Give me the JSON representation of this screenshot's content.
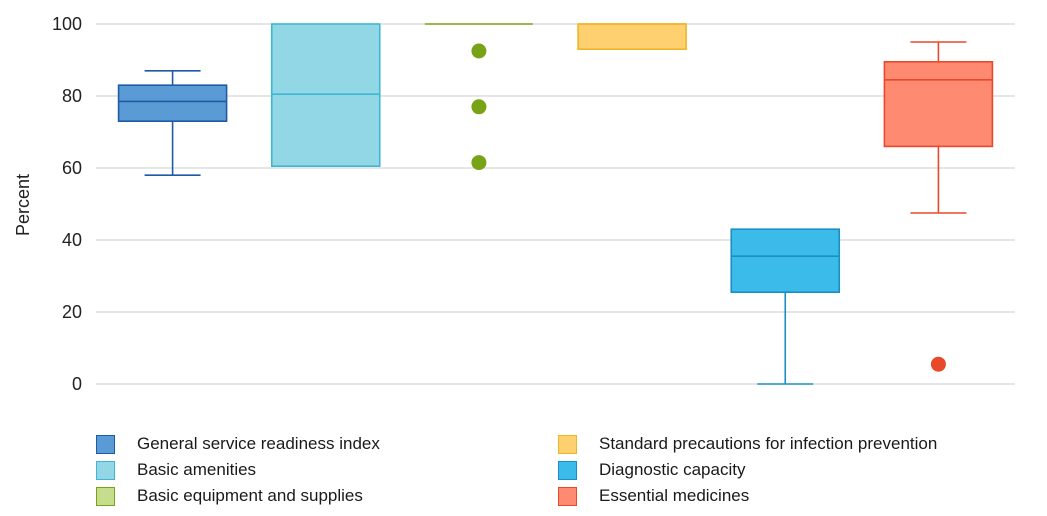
{
  "chart_data": {
    "type": "boxplot",
    "ylabel": "Percent",
    "ylim": [
      0,
      100
    ],
    "yticks": [
      0,
      20,
      40,
      60,
      80,
      100
    ],
    "grid": true,
    "legend_position": "bottom",
    "series": [
      {
        "name": "General service readiness index",
        "fill": "#5b9bd5",
        "stroke": "#1f5aa6",
        "min": 58,
        "q1": 73,
        "median": 78.5,
        "q3": 83,
        "max": 87,
        "outliers": []
      },
      {
        "name": "Basic amenities",
        "fill": "#91d7e6",
        "stroke": "#3fb7d3",
        "min": 60.5,
        "q1": 60.5,
        "median": 80.5,
        "q3": 100,
        "max": 100,
        "outliers": []
      },
      {
        "name": "Basic equipment and supplies",
        "fill": "#c5dd8d",
        "stroke": "#79a316",
        "min": 100,
        "q1": 100,
        "median": 100,
        "q3": 100,
        "max": 100,
        "outliers": [
          92.5,
          77,
          61.5
        ]
      },
      {
        "name": "Standard precautions for infection prevention",
        "fill": "#ffd070",
        "stroke": "#f0b429",
        "min": 93,
        "q1": 93,
        "median": 100,
        "q3": 100,
        "max": 100,
        "outliers": []
      },
      {
        "name": "Diagnostic capacity",
        "fill": "#3bbbea",
        "stroke": "#1a8fc4",
        "min": 0,
        "q1": 25.5,
        "median": 35.5,
        "q3": 43,
        "max": 43,
        "outliers": []
      },
      {
        "name": "Essential medicines",
        "fill": "#ff8a72",
        "stroke": "#e8492a",
        "min": 47.5,
        "q1": 66,
        "median": 84.5,
        "q3": 89.5,
        "max": 95,
        "outliers": [
          5.5
        ]
      }
    ]
  }
}
